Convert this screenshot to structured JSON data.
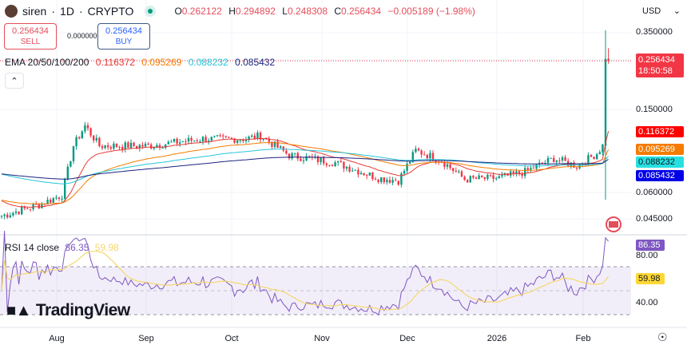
{
  "header": {
    "symbol": "siren",
    "interval": "1D",
    "exchange": "CRYPTO",
    "open": "0.262122",
    "high": "0.294892",
    "low": "0.248308",
    "close": "0.256434",
    "change": "−0.005189 (−1.98%)",
    "o_label": "O",
    "h_label": "H",
    "l_label": "L",
    "c_label": "C",
    "sep": "·"
  },
  "trade": {
    "sell_price": "0.256434",
    "sell_label": "SELL",
    "spread": "0.000000",
    "buy_price": "0.256434",
    "buy_label": "BUY"
  },
  "ema": {
    "label": "EMA 20/50/100/200",
    "v20": "0.116372",
    "v50": "0.095269",
    "v100": "0.088232",
    "v200": "0.085432",
    "colors": {
      "v20": "#e53935",
      "v50": "#f57c00",
      "v100": "#26c6da",
      "v200": "#1a237e"
    }
  },
  "collapse_icon": "chevron-up-icon",
  "currency": "USD",
  "price_axis": {
    "scale": "log",
    "ticks": [
      "0.350000",
      "0.150000",
      "0.060000",
      "0.045000"
    ],
    "last_price": "0.256434",
    "countdown": "18:50:58"
  },
  "ema_tags": [
    "0.116372",
    "0.095269",
    "0.088232",
    "0.085432"
  ],
  "rsi": {
    "label": "RSI 14 close",
    "value": "86.35",
    "ma": "59.98",
    "ticks": [
      "80.00",
      "40.00"
    ],
    "bands": [
      70,
      30
    ]
  },
  "time_axis": [
    "Aug",
    "Sep",
    "Oct",
    "Nov",
    "Dec",
    "2026",
    "Feb"
  ],
  "brand": "TradingView",
  "colors": {
    "up": "#089981",
    "down": "#f23645"
  },
  "price_path": [
    [
      "Jul 12",
      0.046
    ],
    [
      "Jul 25",
      0.052
    ],
    [
      "Aug 2",
      0.058
    ],
    [
      "Aug 6",
      0.1
    ],
    [
      "Aug 10",
      0.125
    ],
    [
      "Aug 15",
      0.1
    ],
    [
      "Sep 1",
      0.1
    ],
    [
      "Sep 20",
      0.108
    ],
    [
      "Oct 5",
      0.108
    ],
    [
      "Oct 10",
      0.112
    ],
    [
      "Oct 20",
      0.09
    ],
    [
      "Nov 5",
      0.083
    ],
    [
      "Nov 20",
      0.07
    ],
    [
      "Nov 27",
      0.068
    ],
    [
      "Dec 3",
      0.095
    ],
    [
      "Dec 12",
      0.085
    ],
    [
      "Dec 20",
      0.069
    ],
    [
      "Jan 1",
      0.07
    ],
    [
      "Jan 10",
      0.075
    ],
    [
      "Jan 20",
      0.087
    ],
    [
      "Jan 28",
      0.08
    ],
    [
      "Feb 4",
      0.092
    ],
    [
      "Feb 6",
      0.1
    ],
    [
      "Feb 7",
      0.262
    ],
    [
      "Feb 8",
      0.256
    ]
  ]
}
